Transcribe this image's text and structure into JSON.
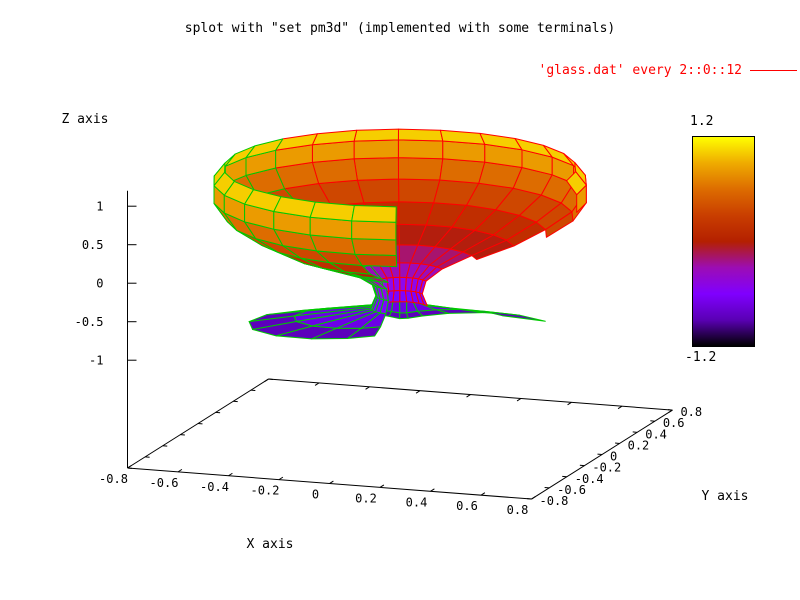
{
  "title": "splot with \"set pm3d\" (implemented with some terminals)",
  "legend": {
    "label": "'glass.dat' every 2::0::12",
    "line_color": "#ff0000"
  },
  "axes": {
    "x": {
      "label": "X axis",
      "tick_labels": [
        "-0.8",
        "-0.6",
        "-0.4",
        "-0.2",
        "0",
        "0.2",
        "0.4",
        "0.6",
        "0.8"
      ],
      "tick_values": [
        -0.8,
        -0.6,
        -0.4,
        -0.2,
        0,
        0.2,
        0.4,
        0.6,
        0.8
      ]
    },
    "y": {
      "label": "Y axis",
      "tick_labels": [
        "-0.8",
        "-0.6",
        "-0.4",
        "-0.2",
        "0",
        "0.2",
        "0.4",
        "0.6",
        "0.8"
      ],
      "tick_values": [
        -0.8,
        -0.6,
        -0.4,
        -0.2,
        0,
        0.2,
        0.4,
        0.6,
        0.8
      ]
    },
    "z": {
      "label": "Z axis",
      "tick_labels": [
        "1",
        "0.5",
        "0",
        "-0.5",
        "-1"
      ],
      "tick_values": [
        1,
        0.5,
        0,
        -0.5,
        -1
      ]
    }
  },
  "colorbar": {
    "max_label": "1.2",
    "min_label": "-1.2",
    "zmin": -1.2,
    "zmax": 1.2,
    "gradient_top_to_bottom": [
      "#ffff00",
      "#efab00",
      "#dd6c00",
      "#c93e00",
      "#b42000",
      "#9c0db4",
      "#8000ff",
      "#5a00b4",
      "#000000"
    ]
  },
  "chart_data": {
    "type": "surface3d",
    "title": "splot with \"set pm3d\" (implemented with some terminals)",
    "source_series": "'glass.dat' every 2::0::12",
    "palette": "pm3d black-purple-red-yellow (rgbformulae 7,5,15)",
    "xy_range": [
      -0.8,
      0.8
    ],
    "z_color_range": [
      -1.2,
      1.2
    ],
    "grid_color": "#00c800",
    "overlay_mesh_color": "#ff0000",
    "overlay_theta_max_deg": 150,
    "overlay_last_row": 10,
    "n_meridians": 22,
    "theta_step_deg": 13.714,
    "lobe_axis_deg": 15,
    "profile_rows": [
      {
        "z": 1.12,
        "r": 0.66
      },
      {
        "z": 0.95,
        "r": 0.7
      },
      {
        "z": 0.72,
        "r": 0.7
      },
      {
        "z": 0.48,
        "r": 0.65
      },
      {
        "z": 0.26,
        "r": 0.55
      },
      {
        "z": 0.06,
        "r": 0.43
      },
      {
        "z": -0.1,
        "r": 0.29
      },
      {
        "z": -0.24,
        "r": 0.17
      },
      {
        "z": -0.38,
        "r": 0.105
      },
      {
        "z": -0.54,
        "r": 0.09
      },
      {
        "z": -0.7,
        "r": 0.11
      },
      {
        "z": -0.84,
        "r": 0.1,
        "lobe": 0.3
      },
      {
        "z": -0.93,
        "r": 0.12,
        "lobe": 0.45
      }
    ],
    "row_theta_trim": [
      [
        0,
        21
      ],
      [
        0,
        21
      ],
      [
        0,
        21
      ],
      [
        1,
        21
      ],
      [
        1,
        21
      ],
      [
        2,
        20
      ],
      [
        2,
        20
      ],
      [
        3,
        20
      ],
      [
        3,
        19
      ],
      [
        3,
        19
      ],
      [
        3,
        19
      ],
      [
        2,
        19
      ],
      [
        2,
        19
      ]
    ]
  }
}
